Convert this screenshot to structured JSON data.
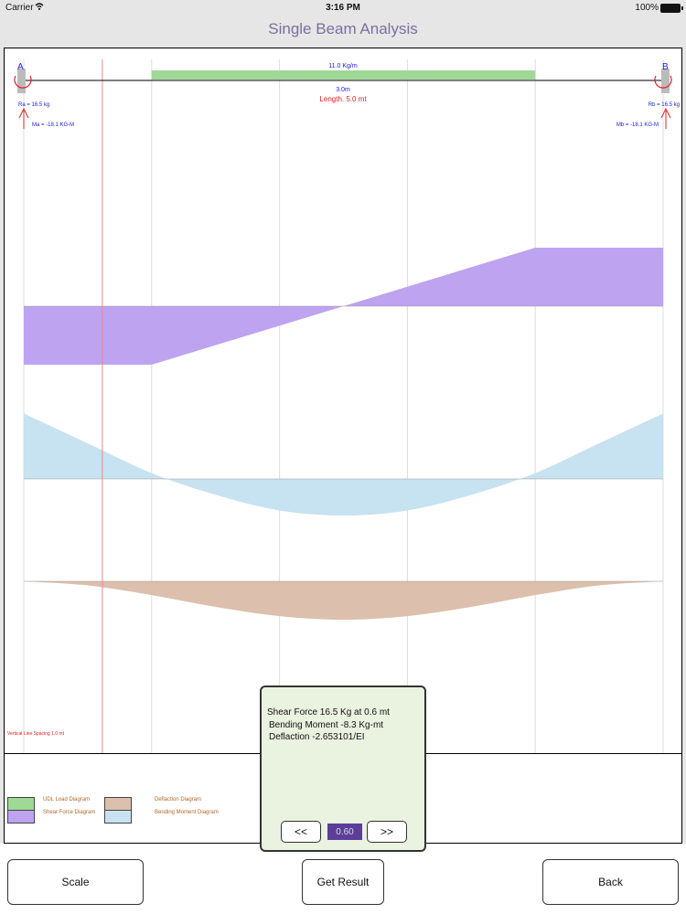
{
  "status_bar": {
    "carrier": "Carrier",
    "time": "3:16 PM",
    "battery": "100%"
  },
  "nav": {
    "title": "Single Beam Analysis"
  },
  "beam": {
    "end_a_label": "A",
    "end_b_label": "B",
    "udl_label": "11.0 Kg/m",
    "udl_span_label": "3.0m",
    "length_label": "Length. 5.0 mt",
    "ra_label": "Ra = 16.5 kg",
    "rb_label": "Rb = 16.5 kg",
    "ma_label": "Ma = -18.1 KG-M",
    "mb_label": "Mb = -18.1 KG-M",
    "spacing_note": "Vertical Line Spacing 1.0 mt"
  },
  "chart_data": {
    "type": "area",
    "beam_length_mt": 5.0,
    "grid_spacing_mt": 1.0,
    "udl": {
      "value_kg_per_m": 11.0,
      "start_mt": 1.0,
      "end_mt": 4.0
    },
    "cursor_mt": 0.6,
    "series": [
      {
        "name": "Shear Force Diagram",
        "x": [
          0,
          1,
          2.5,
          4,
          5
        ],
        "values": [
          16.5,
          16.5,
          0,
          -16.5,
          -16.5
        ]
      },
      {
        "name": "Bending Moment Diagram",
        "x": [
          0,
          0.5,
          1.0,
          1.5,
          2.0,
          2.5,
          3.0,
          3.5,
          4.0,
          4.5,
          5.0
        ],
        "values": [
          -18.1,
          -9.85,
          -1.6,
          4.4,
          8.7,
          10.1,
          8.7,
          4.4,
          -1.6,
          -9.85,
          -18.1
        ]
      },
      {
        "name": "Deflaction Diagram",
        "x": [
          0,
          0.5,
          1.0,
          1.5,
          2.0,
          2.5,
          3.0,
          3.5,
          4.0,
          4.5,
          5.0
        ],
        "values": [
          0,
          -0.8,
          -2.7,
          -5.0,
          -6.8,
          -7.5,
          -6.8,
          -5.0,
          -2.7,
          -0.8,
          0
        ]
      }
    ],
    "colors": {
      "udl": "#9ed996",
      "shear": "#bda3f0",
      "moment": "#c7e2f0",
      "deflection": "#ddbfae",
      "cursor": "#e88a8a",
      "grid": "#dddddd",
      "label_blue": "#1a1ad6",
      "label_red": "#e02020"
    }
  },
  "legend": {
    "udl": "UDL Load Diagram",
    "shear": "Shear Force Diagram",
    "deflection": "Deflaction Diagram",
    "moment": "Bending Moment Diagram"
  },
  "result": {
    "shear_line": "Shear Force 16.5 Kg at 0.6 mt",
    "moment_line": "Bending Moment -8.3 Kg-mt",
    "deflection_line": "Deflaction -2.653101/EI",
    "position_value": "0.60",
    "prev_label": "<<",
    "next_label": ">>"
  },
  "buttons": {
    "scale": "Scale",
    "get_result": "Get Result",
    "back": "Back"
  }
}
